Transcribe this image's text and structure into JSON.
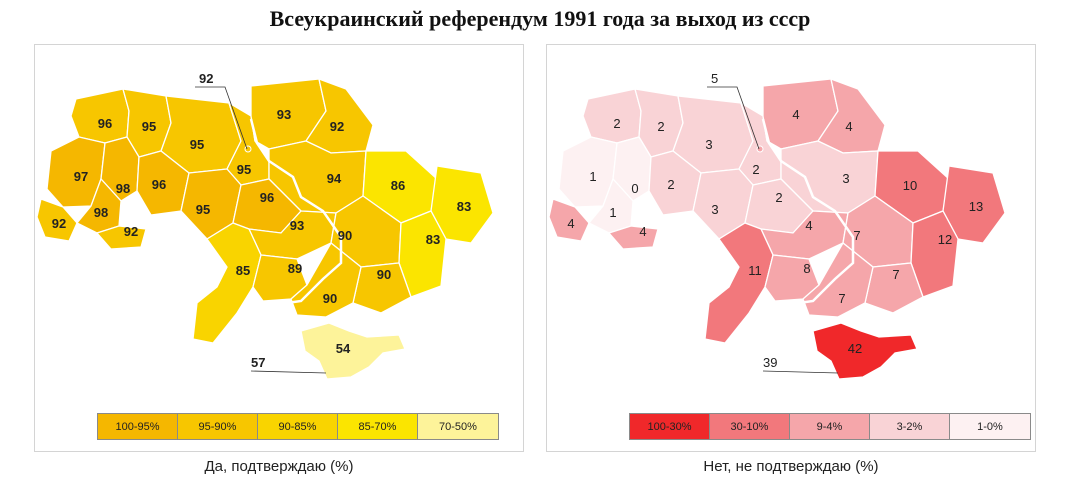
{
  "title": "Всеукраинский референдум 1991 года за выход из ссср",
  "left_map": {
    "caption": "Да, подтверждаю (%)",
    "legend": [
      {
        "label": "100-95%",
        "color": "#f5b700"
      },
      {
        "label": "95-90%",
        "color": "#f7c600"
      },
      {
        "label": "90-85%",
        "color": "#f9d400"
      },
      {
        "label": "85-70%",
        "color": "#fbe500"
      },
      {
        "label": "70-50%",
        "color": "#fdf39a"
      }
    ],
    "regions": {
      "volyn": "96",
      "rivne": "95",
      "zhytomyr": "95",
      "kyiv_city": "92",
      "chernihiv": "93",
      "sumy": "92",
      "lviv": "97",
      "ternopil": "98",
      "khmelnytskyi": "96",
      "vinnytsia": "95",
      "kyiv_oblast": "95",
      "poltava": "94",
      "kharkiv": "86",
      "luhansk": "83",
      "zakarpattia": "92",
      "ivano_frankivsk": "98",
      "chernivtsi": "92",
      "cherkasy": "96",
      "kirovohrad": "93",
      "dnipropetrovsk": "90",
      "donetsk": "83",
      "odesa": "85",
      "mykolaiv": "89",
      "zaporizhzhia": "90",
      "kherson": "90",
      "crimea": "54",
      "sevastopol": "57"
    }
  },
  "right_map": {
    "caption": "Нет, не подтверждаю (%)",
    "legend": [
      {
        "label": "100-30%",
        "color": "#f0282a"
      },
      {
        "label": "30-10%",
        "color": "#f2787c"
      },
      {
        "label": "9-4%",
        "color": "#f5a6aa"
      },
      {
        "label": "3-2%",
        "color": "#f9d3d6"
      },
      {
        "label": "1-0%",
        "color": "#fdf1f2"
      }
    ],
    "regions": {
      "volyn": "2",
      "rivne": "2",
      "zhytomyr": "3",
      "kyiv_city": "5",
      "chernihiv": "4",
      "sumy": "4",
      "lviv": "1",
      "ternopil": "0",
      "khmelnytskyi": "2",
      "vinnytsia": "3",
      "kyiv_oblast": "2",
      "poltava": "3",
      "kharkiv": "10",
      "luhansk": "13",
      "zakarpattia": "4",
      "ivano_frankivsk": "1",
      "chernivtsi": "4",
      "cherkasy": "2",
      "kirovohrad": "4",
      "dnipropetrovsk": "7",
      "donetsk": "12",
      "odesa": "11",
      "mykolaiv": "8",
      "zaporizhzhia": "7",
      "kherson": "7",
      "crimea": "42",
      "sevastopol": "39"
    }
  }
}
